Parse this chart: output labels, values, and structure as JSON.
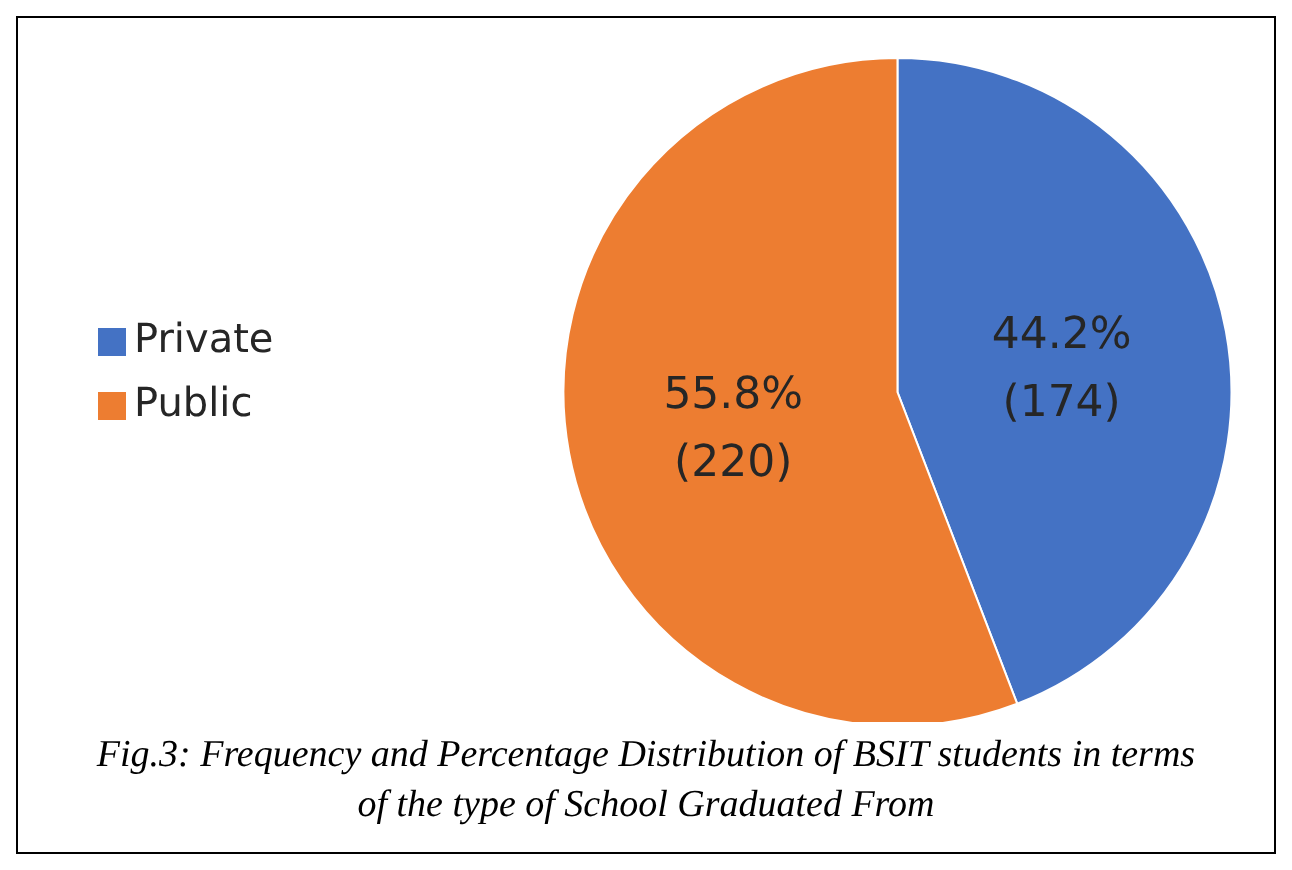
{
  "chart_data": {
    "type": "pie",
    "categories": [
      "Private",
      "Public"
    ],
    "values": [
      174,
      220
    ],
    "colors": [
      "#4472c4",
      "#ed7d31"
    ],
    "value_labels": [
      "44.2% (174)",
      "55.8% (220)"
    ],
    "legend": "left",
    "annotations": [
      "Fig.3: Frequency and Percentage Distribution of BSIT students in terms of the type of School Graduated From"
    ]
  }
}
